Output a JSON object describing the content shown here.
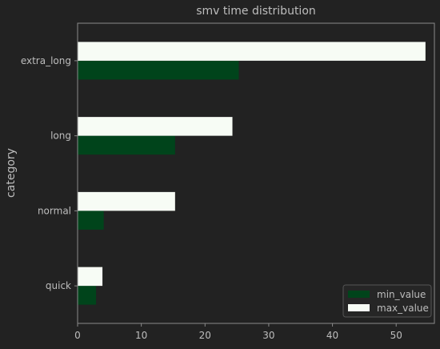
{
  "chart_data": {
    "type": "bar",
    "orientation": "horizontal",
    "title": "smv time distribution",
    "xlabel": "",
    "ylabel": "category",
    "categories": [
      "extra_long",
      "long",
      "normal",
      "quick"
    ],
    "series": [
      {
        "name": "min_value",
        "values": [
          25.3,
          15.3,
          4.1,
          2.9
        ],
        "color": "#00441b"
      },
      {
        "name": "max_value",
        "values": [
          54.6,
          24.3,
          15.3,
          3.9
        ],
        "color": "#f7fcf5"
      }
    ],
    "xlim": [
      0,
      56
    ],
    "xticks": [
      "0",
      "10",
      "20",
      "30",
      "40",
      "50"
    ],
    "grid": false,
    "legend_position": "bottom-right"
  },
  "colors": {
    "background": "#222222",
    "axes_edge": "#8a8a8a",
    "text": "#bdbdbd"
  }
}
